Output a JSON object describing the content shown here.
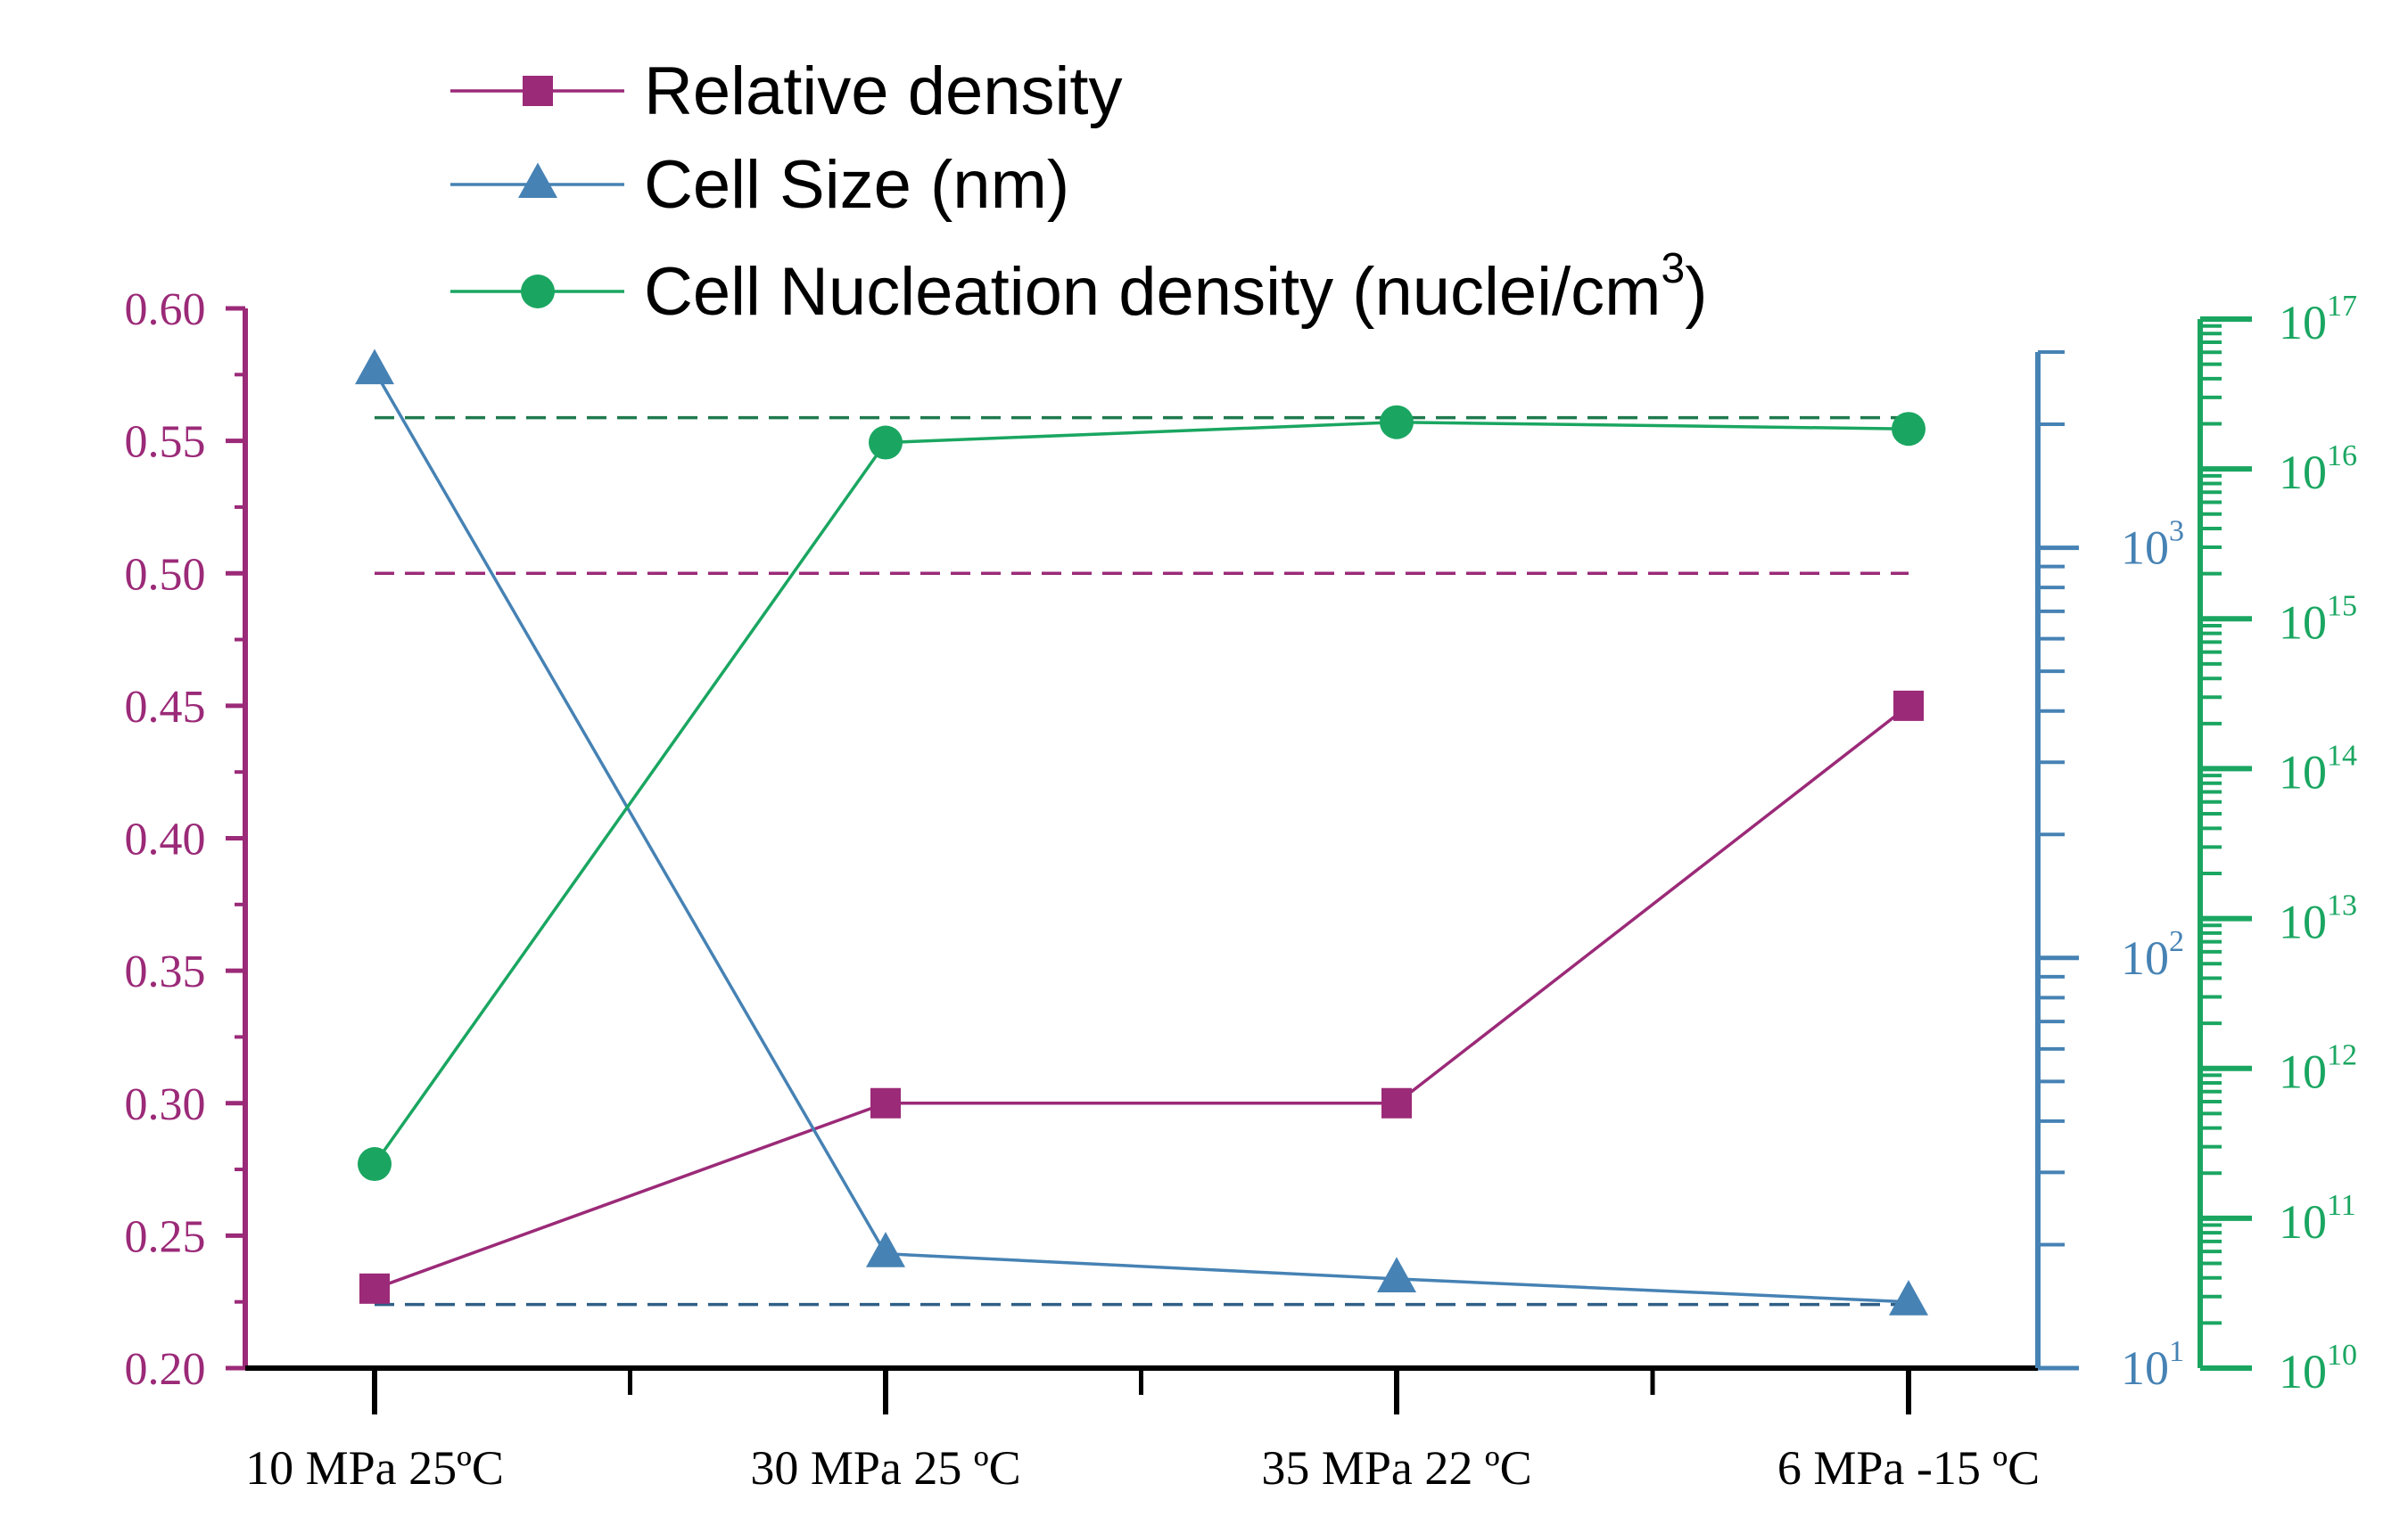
{
  "chart_data": {
    "type": "line",
    "categories": [
      "10 MPa 25ºC",
      "30 MPa 25 ºC",
      "35 MPa 22 ºC",
      "6 MPa -15 ºC"
    ],
    "series": [
      {
        "name": "Relative density",
        "axis": "left",
        "marker": "square",
        "color": "#9b2a78",
        "values": [
          0.23,
          0.3,
          0.3,
          0.45
        ]
      },
      {
        "name": "Cell Size (nm)",
        "axis": "right_blue",
        "marker": "triangle",
        "color": "#4682b4",
        "values": [
          2700,
          19,
          16.5,
          14.5
        ]
      },
      {
        "name": "Cell Nucleation density (nuclei/cm",
        "name_sup": "3",
        "name_suffix": ")",
        "axis": "right_green",
        "marker": "circle",
        "color": "#1aa661",
        "values": [
          230000000000.0,
          1.5e+16,
          2.05e+16,
          1.85e+16
        ]
      }
    ],
    "reference_lines": [
      {
        "axis": "right_green",
        "value": 2.2e+16,
        "color": "#1e7a4e",
        "style": "dashed"
      },
      {
        "axis": "left",
        "value": 0.5,
        "color": "#9b2a78",
        "style": "dashed"
      },
      {
        "axis": "left",
        "value": 0.224,
        "color": "#2f5f86",
        "style": "dashed"
      }
    ],
    "axes": {
      "left": {
        "scale": "linear",
        "ylim": [
          0.2,
          0.6
        ],
        "color": "#9b2a78",
        "tick_labels": [
          "0.20",
          "0.25",
          "0.30",
          "0.35",
          "0.40",
          "0.45",
          "0.50",
          "0.55",
          "0.60"
        ]
      },
      "right_blue": {
        "scale": "log",
        "ylim": [
          10,
          3000
        ],
        "color": "#4682b4",
        "tick_labels": [
          {
            "base": "10",
            "exp": "1"
          },
          {
            "base": "10",
            "exp": "2"
          },
          {
            "base": "10",
            "exp": "3"
          }
        ]
      },
      "right_green": {
        "scale": "log",
        "ylim": [
          10000000000.0,
          1e+17
        ],
        "color": "#1aa661",
        "tick_labels": [
          {
            "base": "10",
            "exp": "10"
          },
          {
            "base": "10",
            "exp": "11"
          },
          {
            "base": "10",
            "exp": "12"
          },
          {
            "base": "10",
            "exp": "13"
          },
          {
            "base": "10",
            "exp": "14"
          },
          {
            "base": "10",
            "exp": "15"
          },
          {
            "base": "10",
            "exp": "16"
          },
          {
            "base": "10",
            "exp": "17"
          }
        ]
      }
    },
    "legend": {
      "position": "top-center"
    },
    "title": "",
    "xlabel": "",
    "grid": false
  }
}
